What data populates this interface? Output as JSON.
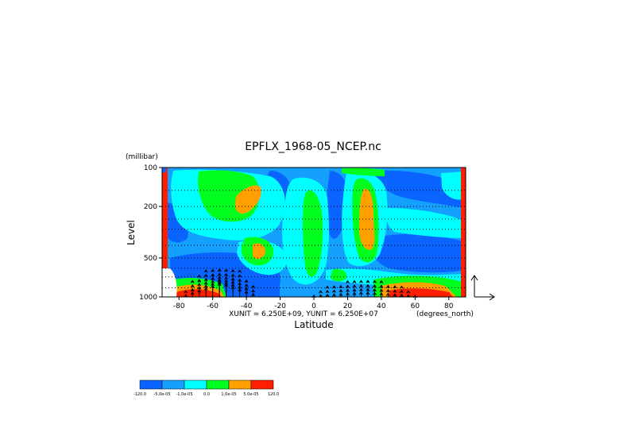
{
  "chart_data": {
    "type": "heatmap",
    "title": "EPFLX_1968-05_NCEP.nc",
    "ylabel": "Level",
    "yunits": "(millibar)",
    "xlabel": "Latitude",
    "xunits": "(degrees_north)",
    "vector_units": "XUNIT = 6.250E+09, YUNIT = 6.250E+07",
    "xlim": [
      -90,
      90
    ],
    "ylim": [
      1000,
      100
    ],
    "yscale": "log",
    "x_ticks": [
      -80,
      -60,
      -40,
      -20,
      0,
      20,
      40,
      60,
      80
    ],
    "x_tick_labels": [
      "-80",
      "-60",
      "-40",
      "-20",
      "0",
      "20",
      "40",
      "60",
      "80"
    ],
    "y_ticks": [
      100,
      200,
      500,
      1000
    ],
    "y_tick_labels": [
      "100",
      "200",
      "500",
      "1000"
    ],
    "grid": true,
    "colorbar": {
      "colors": [
        "#0a64ff",
        "#14a0ff",
        "#00ffff",
        "#00ff1e",
        "#ffa000",
        "#ff1e00"
      ],
      "labels": [
        "-120.0",
        "-5.0e-05",
        "-1.0e-05",
        "0.0",
        "1.0e-05",
        "5.0e-05",
        "120.0"
      ]
    },
    "contour_colors": {
      "c1": "#0a64ff",
      "c2": "#14a0ff",
      "c3": "#00ffff",
      "c4": "#00ff1e",
      "c5": "#ffa000",
      "c6": "#ff1e00"
    }
  }
}
